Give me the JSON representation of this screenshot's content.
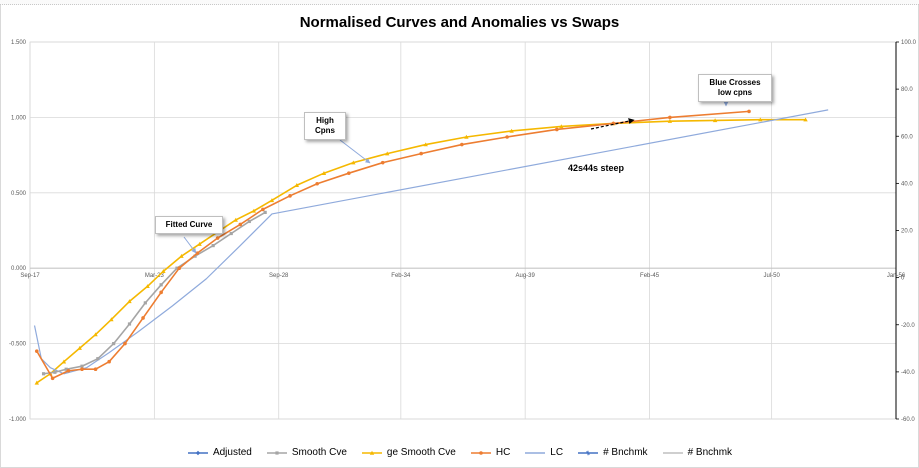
{
  "chart_data": {
    "type": "line",
    "title": "Normalised Curves and Anomalies vs Swaps",
    "x_ticks": [
      "Sep-17",
      "Mar-23",
      "Sep-28",
      "Feb-34",
      "Aug-39",
      "Feb-45",
      "Jul-50",
      "Jan-56"
    ],
    "x_tick_values": [
      2017.7,
      2023.2,
      2028.7,
      2034.1,
      2039.6,
      2045.1,
      2050.5,
      2056.0
    ],
    "xlim": [
      2017.7,
      2056.0
    ],
    "y_left_ticks": [
      "1.500",
      "1.000",
      "0.500",
      "0.000",
      "-0.500",
      "-1.000"
    ],
    "y_left_values": [
      1.5,
      1.0,
      0.5,
      0.0,
      -0.5,
      -1.0
    ],
    "ylim_left": [
      -1.0,
      1.5
    ],
    "y_right_ticks": [
      "100.0",
      "80.0",
      "60.0",
      "40.0",
      "20.0",
      "0",
      "-20.0",
      "-40.0",
      "-60.0"
    ],
    "y_right_values": [
      100,
      80,
      60,
      40,
      20,
      0,
      -20,
      -40,
      -60
    ],
    "ylim_right": [
      -60,
      100
    ],
    "grid": true,
    "legend_position": "bottom",
    "series": [
      {
        "name": "Adjusted",
        "axis": "left",
        "color": "#4472c4",
        "marker": "diamond",
        "x": [],
        "y": []
      },
      {
        "name": "Smooth Cve",
        "axis": "left",
        "color": "#a5a5a5",
        "marker": "square",
        "x": [
          2018.3,
          2018.8,
          2019.3,
          2020.0,
          2020.7,
          2021.4,
          2022.1,
          2022.8,
          2023.5,
          2024.2,
          2025.0,
          2025.8,
          2026.6,
          2027.4,
          2028.1
        ],
        "y": [
          -0.7,
          -0.69,
          -0.67,
          -0.65,
          -0.6,
          -0.5,
          -0.37,
          -0.23,
          -0.11,
          0.0,
          0.08,
          0.15,
          0.23,
          0.31,
          0.37
        ]
      },
      {
        "name": "ge Smooth Cve",
        "axis": "left",
        "color": "#f5b800",
        "marker": "triangle",
        "x": [
          2018.0,
          2018.6,
          2019.2,
          2019.9,
          2020.6,
          2021.3,
          2022.1,
          2022.9,
          2023.6,
          2024.4,
          2025.2,
          2026.0,
          2026.8,
          2027.6,
          2028.4,
          2029.5,
          2030.7,
          2032.0,
          2033.5,
          2035.2,
          2037.0,
          2039.0,
          2041.2,
          2043.5,
          2046.0,
          2048.0,
          2050.0,
          2052.0
        ],
        "y": [
          -0.76,
          -0.7,
          -0.62,
          -0.53,
          -0.44,
          -0.34,
          -0.22,
          -0.12,
          -0.02,
          0.08,
          0.16,
          0.24,
          0.32,
          0.38,
          0.45,
          0.55,
          0.63,
          0.7,
          0.76,
          0.82,
          0.87,
          0.91,
          0.94,
          0.96,
          0.975,
          0.98,
          0.985,
          0.985
        ]
      },
      {
        "name": "HC",
        "axis": "left",
        "color": "#ed7d31",
        "marker": "circle",
        "x": [
          2018.0,
          2018.7,
          2019.4,
          2020.0,
          2020.6,
          2021.2,
          2021.9,
          2022.7,
          2023.5,
          2024.3,
          2025.1,
          2026.0,
          2027.0,
          2028.0,
          2029.2,
          2030.4,
          2031.8,
          2033.3,
          2035.0,
          2036.8,
          2038.8,
          2041.0,
          2043.5,
          2046.0,
          2049.5
        ],
        "y": [
          -0.55,
          -0.73,
          -0.68,
          -0.67,
          -0.67,
          -0.62,
          -0.5,
          -0.33,
          -0.16,
          0.0,
          0.1,
          0.2,
          0.29,
          0.39,
          0.48,
          0.56,
          0.63,
          0.7,
          0.76,
          0.82,
          0.87,
          0.92,
          0.96,
          1.0,
          1.04
        ]
      },
      {
        "name": "LC",
        "axis": "left",
        "color": "#8faadc",
        "marker": "none",
        "x": [
          2017.9,
          2018.2,
          2018.6,
          2019.2,
          2020.2,
          2021.2,
          2022.5,
          2024.0,
          2025.5,
          2027.0,
          2028.4,
          2053.0
        ],
        "y": [
          -0.38,
          -0.6,
          -0.66,
          -0.7,
          -0.66,
          -0.56,
          -0.42,
          -0.25,
          -0.07,
          0.15,
          0.36,
          1.05
        ]
      },
      {
        "name": "# Bnchmk",
        "axis": "left",
        "color": "#4472c4",
        "marker": "star",
        "x": [],
        "y": []
      },
      {
        "name": "# Bnchmk",
        "axis": "left",
        "color": "#bfbfbf",
        "marker": "none",
        "x": [],
        "y": []
      }
    ],
    "annotations": [
      {
        "label": "Blue Crosses\nlow cpns",
        "type": "box"
      },
      {
        "label": "High\nCpns",
        "type": "box"
      },
      {
        "label": "Fitted Curve",
        "type": "box"
      },
      {
        "label": "42s44s steep",
        "type": "text"
      }
    ]
  }
}
